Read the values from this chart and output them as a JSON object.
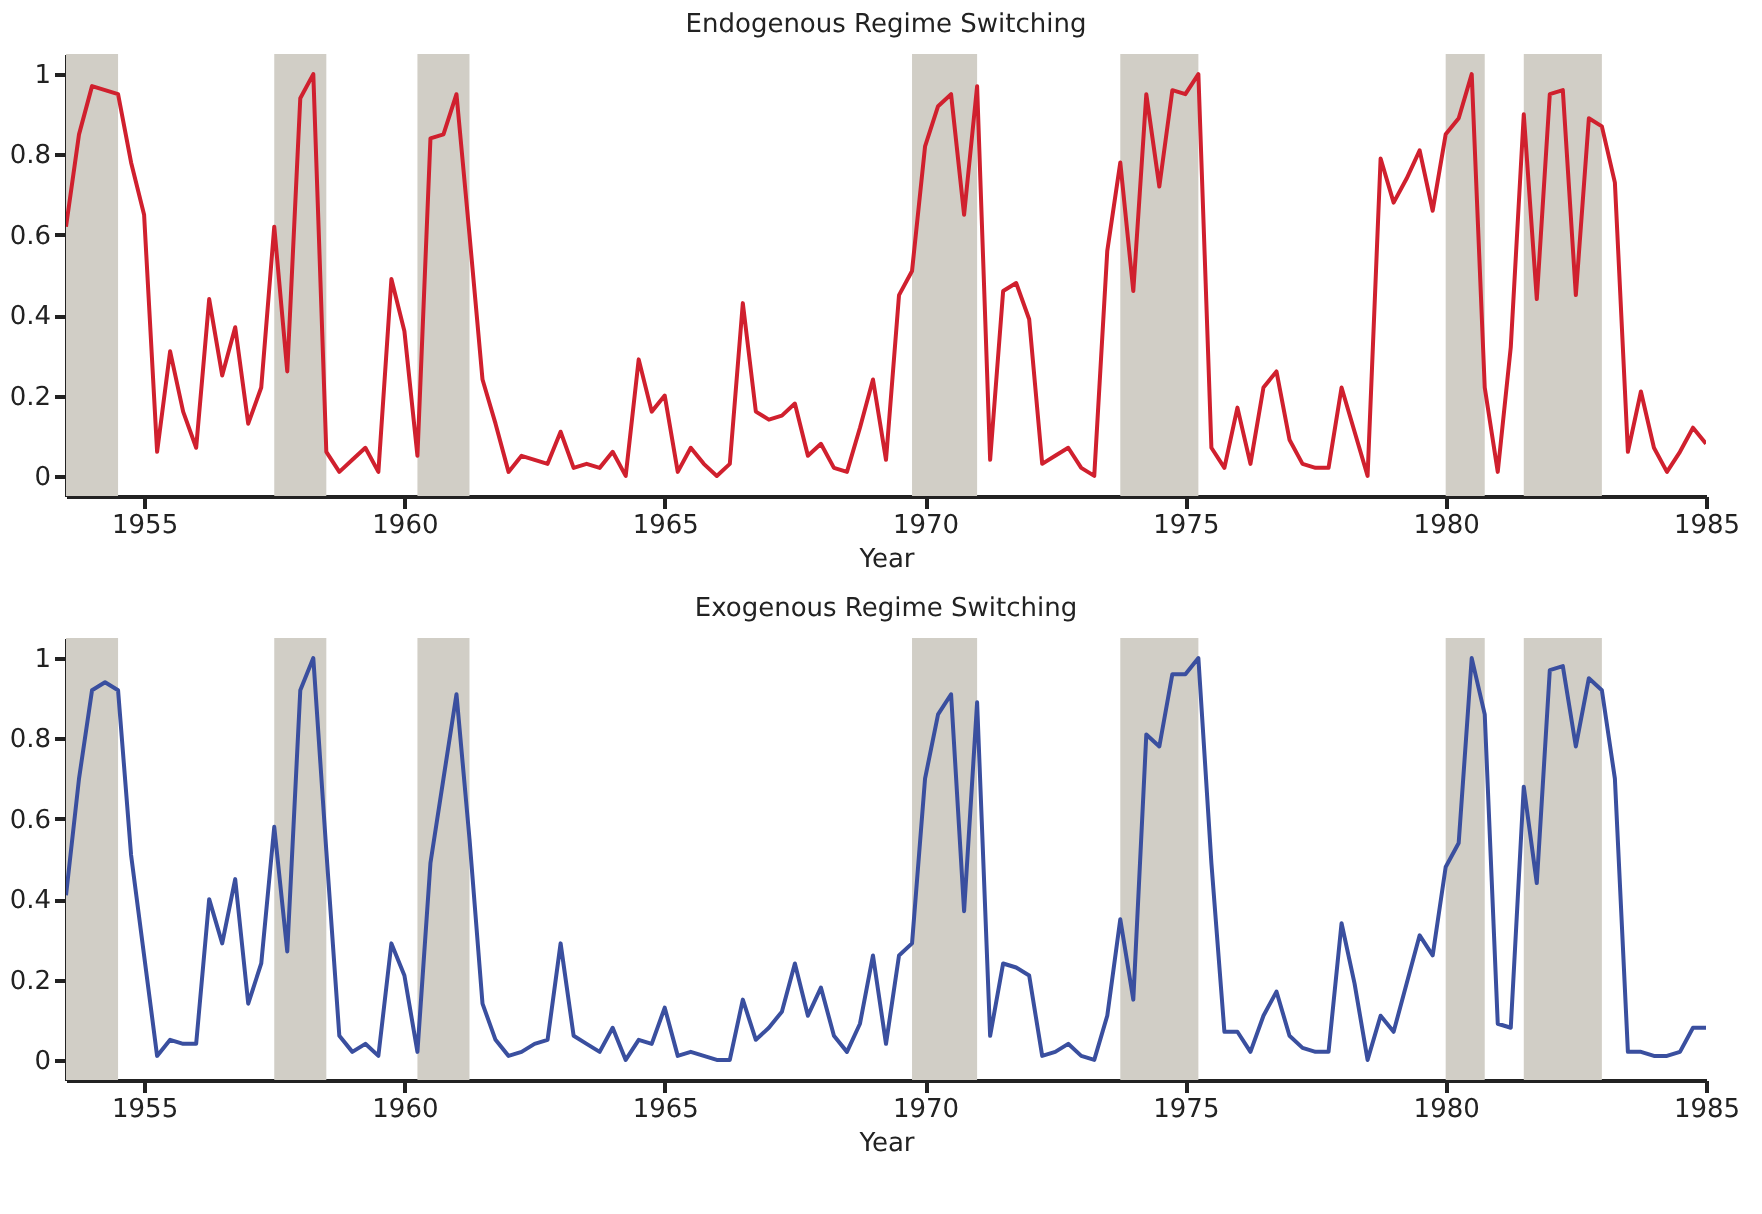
{
  "chart_data": [
    {
      "type": "line",
      "title": "Endogenous Regime Switching",
      "xlabel": "Year",
      "x": [
        1953.5,
        1953.75,
        1954,
        1954.25,
        1954.5,
        1954.75,
        1955,
        1955.25,
        1955.5,
        1955.75,
        1956,
        1956.25,
        1956.5,
        1956.75,
        1957,
        1957.25,
        1957.5,
        1957.75,
        1958,
        1958.25,
        1958.5,
        1958.75,
        1959,
        1959.25,
        1959.5,
        1959.75,
        1960,
        1960.25,
        1960.5,
        1960.75,
        1961,
        1961.25,
        1961.5,
        1961.75,
        1962,
        1962.25,
        1962.5,
        1962.75,
        1963,
        1963.25,
        1963.5,
        1963.75,
        1964,
        1964.25,
        1964.5,
        1964.75,
        1965,
        1965.25,
        1965.5,
        1965.75,
        1966,
        1966.25,
        1966.5,
        1966.75,
        1967,
        1967.25,
        1967.5,
        1967.75,
        1968,
        1968.25,
        1968.5,
        1968.75,
        1969,
        1969.25,
        1969.5,
        1969.75,
        1970,
        1970.25,
        1970.5,
        1970.75,
        1971,
        1971.25,
        1971.5,
        1971.75,
        1972,
        1972.25,
        1972.5,
        1972.75,
        1973,
        1973.25,
        1973.5,
        1973.75,
        1974,
        1974.25,
        1974.5,
        1974.75,
        1975,
        1975.25,
        1975.5,
        1975.75,
        1976,
        1976.25,
        1976.5,
        1976.75,
        1977,
        1977.25,
        1977.5,
        1977.75,
        1978,
        1978.25,
        1978.5,
        1978.75,
        1979,
        1979.25,
        1979.5,
        1979.75,
        1980,
        1980.25,
        1980.5,
        1980.75,
        1981,
        1981.25,
        1981.5,
        1981.75,
        1982,
        1982.25,
        1982.5,
        1982.75,
        1983,
        1983.25,
        1983.5,
        1983.75,
        1984,
        1984.25,
        1984.5,
        1984.75,
        1985
      ],
      "series": [
        {
          "color": "#d0202e",
          "values": [
            0.62,
            0.85,
            0.97,
            0.96,
            0.95,
            0.78,
            0.65,
            0.06,
            0.31,
            0.16,
            0.07,
            0.44,
            0.25,
            0.37,
            0.13,
            0.22,
            0.62,
            0.26,
            0.94,
            1,
            0.06,
            0.01,
            0.04,
            0.07,
            0.01,
            0.49,
            0.36,
            0.05,
            0.84,
            0.85,
            0.95,
            0.6,
            0.24,
            0.13,
            0.01,
            0.05,
            0.04,
            0.03,
            0.11,
            0.02,
            0.03,
            0.02,
            0.06,
            0,
            0.29,
            0.16,
            0.2,
            0.01,
            0.07,
            0.03,
            0,
            0.03,
            0.43,
            0.16,
            0.14,
            0.15,
            0.18,
            0.05,
            0.08,
            0.02,
            0.01,
            0.12,
            0.24,
            0.04,
            0.45,
            0.51,
            0.82,
            0.92,
            0.95,
            0.65,
            0.97,
            0.04,
            0.46,
            0.48,
            0.39,
            0.03,
            0.05,
            0.07,
            0.02,
            0,
            0.56,
            0.78,
            0.46,
            0.95,
            0.72,
            0.96,
            0.95,
            1,
            0.07,
            0.02,
            0.17,
            0.03,
            0.22,
            0.26,
            0.09,
            0.03,
            0.02,
            0.02,
            0.22,
            0.11,
            0,
            0.79,
            0.68,
            0.74,
            0.81,
            0.66,
            0.85,
            0.89,
            1,
            0.22,
            0.01,
            0.32,
            0.9,
            0.44,
            0.95,
            0.96,
            0.45,
            0.89,
            0.87,
            0.73,
            0.06,
            0.21,
            0.07,
            0.01,
            0.06,
            0.12,
            0.08
          ]
        }
      ],
      "xlim": [
        1953.5,
        1985
      ],
      "xticks": [
        1955,
        1960,
        1965,
        1970,
        1975,
        1980,
        1985
      ],
      "ylim": [
        -0.05,
        1.05
      ],
      "yticks": [
        0,
        0.2,
        0.4,
        0.6,
        0.8,
        1
      ],
      "bands": [
        {
          "axis": "x",
          "from": 1953.5,
          "to": 1954.5,
          "color": "#d1cec6"
        },
        {
          "axis": "x",
          "from": 1957.5,
          "to": 1958.5,
          "color": "#d1cec6"
        },
        {
          "axis": "x",
          "from": 1960.25,
          "to": 1961.25,
          "color": "#d1cec6"
        },
        {
          "axis": "x",
          "from": 1969.75,
          "to": 1971,
          "color": "#d1cec6"
        },
        {
          "axis": "x",
          "from": 1973.75,
          "to": 1975.25,
          "color": "#d1cec6"
        },
        {
          "axis": "x",
          "from": 1980,
          "to": 1980.75,
          "color": "#d1cec6"
        },
        {
          "axis": "x",
          "from": 1981.5,
          "to": 1983,
          "color": "#d1cec6"
        }
      ]
    },
    {
      "type": "line",
      "title": "Exogenous Regime Switching",
      "xlabel": "Year",
      "x": [
        1953.5,
        1953.75,
        1954,
        1954.25,
        1954.5,
        1954.75,
        1955,
        1955.25,
        1955.5,
        1955.75,
        1956,
        1956.25,
        1956.5,
        1956.75,
        1957,
        1957.25,
        1957.5,
        1957.75,
        1958,
        1958.25,
        1958.5,
        1958.75,
        1959,
        1959.25,
        1959.5,
        1959.75,
        1960,
        1960.25,
        1960.5,
        1960.75,
        1961,
        1961.25,
        1961.5,
        1961.75,
        1962,
        1962.25,
        1962.5,
        1962.75,
        1963,
        1963.25,
        1963.5,
        1963.75,
        1964,
        1964.25,
        1964.5,
        1964.75,
        1965,
        1965.25,
        1965.5,
        1965.75,
        1966,
        1966.25,
        1966.5,
        1966.75,
        1967,
        1967.25,
        1967.5,
        1967.75,
        1968,
        1968.25,
        1968.5,
        1968.75,
        1969,
        1969.25,
        1969.5,
        1969.75,
        1970,
        1970.25,
        1970.5,
        1970.75,
        1971,
        1971.25,
        1971.5,
        1971.75,
        1972,
        1972.25,
        1972.5,
        1972.75,
        1973,
        1973.25,
        1973.5,
        1973.75,
        1974,
        1974.25,
        1974.5,
        1974.75,
        1975,
        1975.25,
        1975.5,
        1975.75,
        1976,
        1976.25,
        1976.5,
        1976.75,
        1977,
        1977.25,
        1977.5,
        1977.75,
        1978,
        1978.25,
        1978.5,
        1978.75,
        1979,
        1979.25,
        1979.5,
        1979.75,
        1980,
        1980.25,
        1980.5,
        1980.75,
        1981,
        1981.25,
        1981.5,
        1981.75,
        1982,
        1982.25,
        1982.5,
        1982.75,
        1983,
        1983.25,
        1983.5,
        1983.75,
        1984,
        1984.25,
        1984.5,
        1984.75,
        1985
      ],
      "series": [
        {
          "color": "#3a4f9f",
          "values": [
            0.41,
            0.7,
            0.92,
            0.94,
            0.92,
            0.51,
            0.26,
            0.01,
            0.05,
            0.04,
            0.04,
            0.4,
            0.29,
            0.45,
            0.14,
            0.24,
            0.58,
            0.27,
            0.92,
            1,
            0.52,
            0.06,
            0.02,
            0.04,
            0.01,
            0.29,
            0.21,
            0.02,
            0.49,
            0.7,
            0.91,
            0.55,
            0.14,
            0.05,
            0.01,
            0.02,
            0.04,
            0.05,
            0.29,
            0.06,
            0.04,
            0.02,
            0.08,
            0,
            0.05,
            0.04,
            0.13,
            0.01,
            0.02,
            0.01,
            0,
            0,
            0.15,
            0.05,
            0.08,
            0.12,
            0.24,
            0.11,
            0.18,
            0.06,
            0.02,
            0.09,
            0.26,
            0.04,
            0.26,
            0.29,
            0.7,
            0.86,
            0.91,
            0.37,
            0.89,
            0.06,
            0.24,
            0.23,
            0.21,
            0.01,
            0.02,
            0.04,
            0.01,
            0,
            0.11,
            0.35,
            0.15,
            0.81,
            0.78,
            0.96,
            0.96,
            1,
            0.49,
            0.07,
            0.07,
            0.02,
            0.11,
            0.17,
            0.06,
            0.03,
            0.02,
            0.02,
            0.34,
            0.19,
            0,
            0.11,
            0.07,
            0.19,
            0.31,
            0.26,
            0.48,
            0.54,
            1,
            0.86,
            0.09,
            0.08,
            0.68,
            0.44,
            0.97,
            0.98,
            0.78,
            0.95,
            0.92,
            0.7,
            0.02,
            0.02,
            0.01,
            0.01,
            0.02,
            0.08,
            0.08
          ]
        }
      ],
      "xlim": [
        1953.5,
        1985
      ],
      "xticks": [
        1955,
        1960,
        1965,
        1970,
        1975,
        1980,
        1985
      ],
      "ylim": [
        -0.05,
        1.05
      ],
      "yticks": [
        0,
        0.2,
        0.4,
        0.6,
        0.8,
        1
      ],
      "bands": [
        {
          "axis": "x",
          "from": 1953.5,
          "to": 1954.5,
          "color": "#d1cec6"
        },
        {
          "axis": "x",
          "from": 1957.5,
          "to": 1958.5,
          "color": "#d1cec6"
        },
        {
          "axis": "x",
          "from": 1960.25,
          "to": 1961.25,
          "color": "#d1cec6"
        },
        {
          "axis": "x",
          "from": 1969.75,
          "to": 1971,
          "color": "#d1cec6"
        },
        {
          "axis": "x",
          "from": 1973.75,
          "to": 1975.25,
          "color": "#d1cec6"
        },
        {
          "axis": "x",
          "from": 1980,
          "to": 1980.75,
          "color": "#d1cec6"
        },
        {
          "axis": "x",
          "from": 1981.5,
          "to": 1983,
          "color": "#d1cec6"
        }
      ]
    }
  ]
}
